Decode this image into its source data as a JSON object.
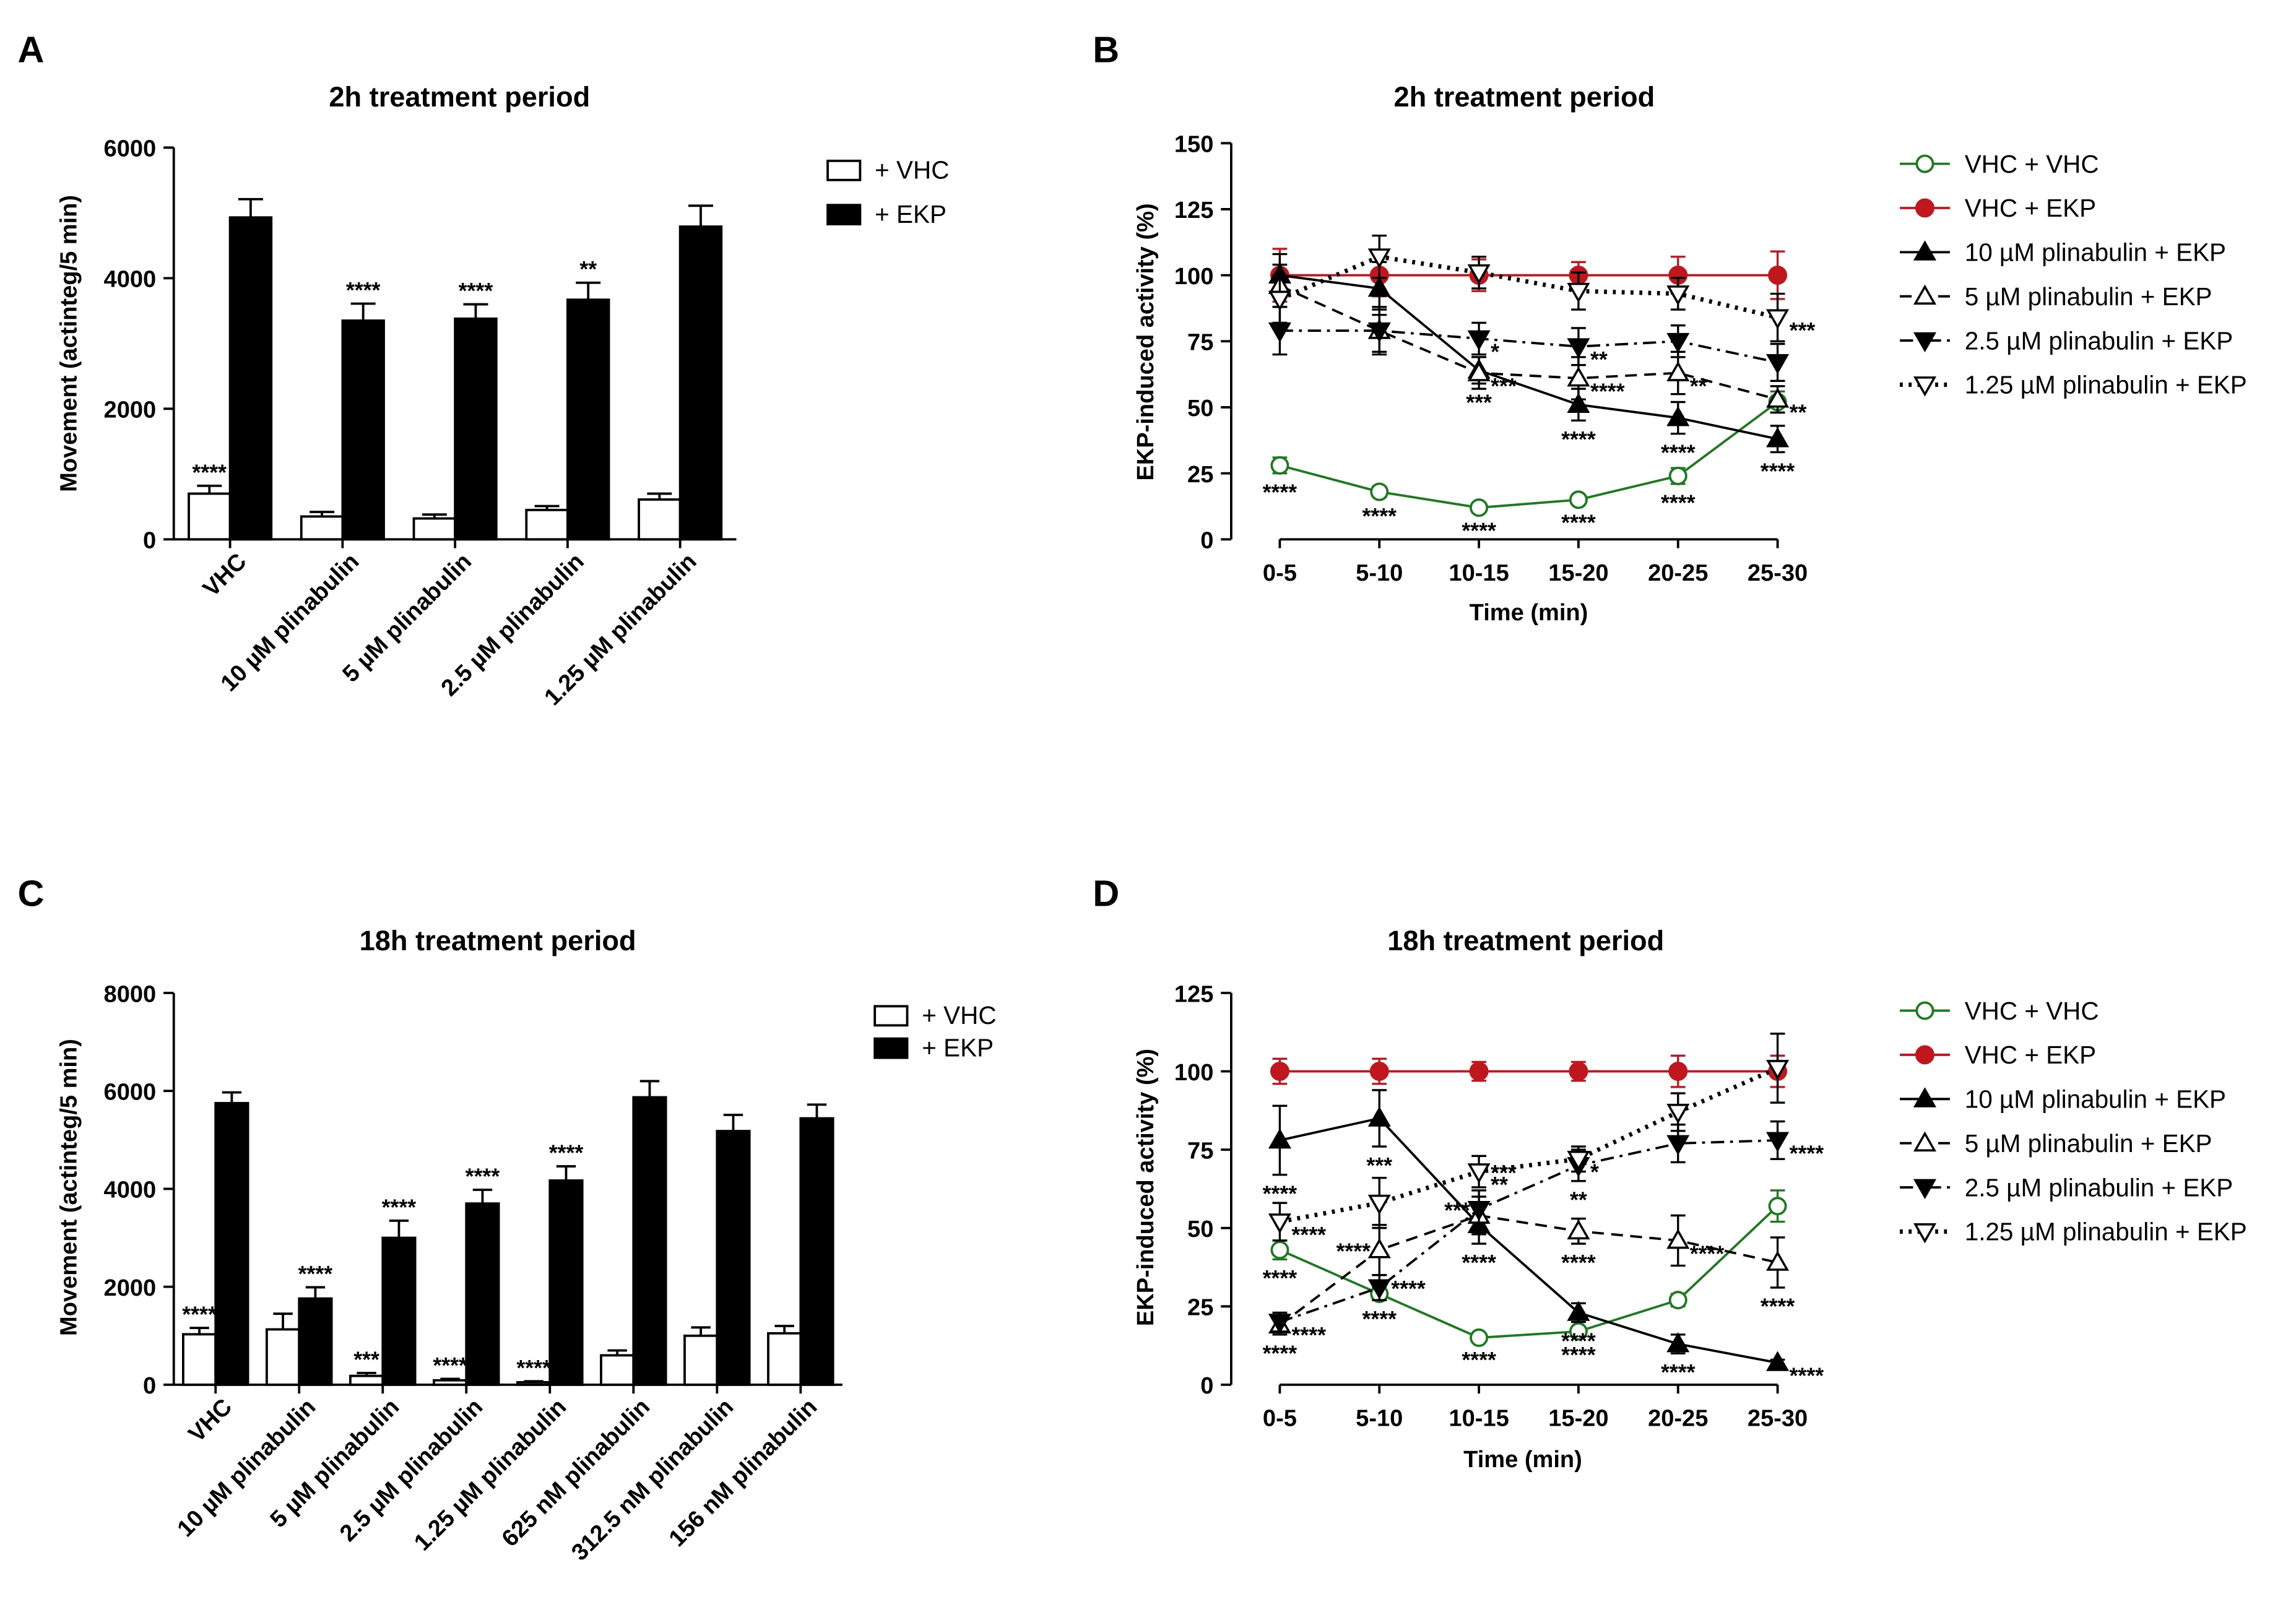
{
  "chart_data": [
    {
      "panel": "A",
      "type": "bar",
      "title": "2h treatment period",
      "ylabel": "Movement (actinteg/5 min)",
      "xlabel": "",
      "ylim": [
        0,
        6000
      ],
      "yticks": [
        0,
        2000,
        4000,
        6000
      ],
      "categories": [
        "VHC",
        "10 µM plinabulin",
        "5 µM plinabulin",
        "2.5 µM plinabulin",
        "1.25 µM plinabulin"
      ],
      "series": [
        {
          "name": "+ VHC",
          "fill": "#ffffff",
          "values": [
            700,
            350,
            320,
            450,
            610
          ],
          "errors": [
            120,
            70,
            60,
            60,
            90
          ],
          "annotations": [
            "****",
            "",
            "",
            "",
            ""
          ]
        },
        {
          "name": "+ EKP",
          "fill": "#000000",
          "values": [
            4930,
            3350,
            3380,
            3670,
            4790
          ],
          "errors": [
            280,
            260,
            220,
            260,
            320
          ],
          "annotations": [
            "",
            "****",
            "****",
            "**",
            ""
          ]
        }
      ],
      "legend": "top-right"
    },
    {
      "panel": "B",
      "type": "line",
      "title": "2h treatment period",
      "xlabel": "Time (min)",
      "ylabel": "EKP-induced activity (%)",
      "ylim": [
        0,
        150
      ],
      "yticks": [
        0,
        25,
        50,
        75,
        100,
        125,
        150
      ],
      "categories": [
        "0-5",
        "5-10",
        "10-15",
        "15-20",
        "20-25",
        "25-30"
      ],
      "series": [
        {
          "name": "VHC + VHC",
          "color": "#1e7a1e",
          "marker": "circle-open",
          "dash": "solid",
          "values": [
            28,
            18,
            12,
            15,
            24,
            52
          ],
          "errors": [
            3,
            2,
            1.5,
            1.5,
            3,
            4
          ],
          "annotations": [
            [
              0,
              0,
              0,
              -1,
              "****"
            ],
            [
              1,
              0,
              0,
              -1,
              "****"
            ],
            [
              2,
              0,
              0,
              -1,
              "****"
            ],
            [
              3,
              0,
              0,
              -1,
              "****"
            ],
            [
              4,
              0,
              0,
              -1,
              "****"
            ]
          ]
        },
        {
          "name": "VHC + EKP",
          "color": "#c0161e",
          "marker": "circle-filled",
          "dash": "solid",
          "values": [
            100,
            100,
            100,
            100,
            100,
            100
          ],
          "errors": [
            10,
            8,
            6,
            5,
            7,
            9
          ],
          "annotations": []
        },
        {
          "name": "10 µM plinabulin  + EKP",
          "color": "#000000",
          "marker": "triangle-up",
          "dash": "solid",
          "values": [
            100,
            95,
            64,
            51,
            46,
            38
          ],
          "errors": [
            8,
            10,
            5,
            6,
            6,
            5
          ],
          "annotations": [
            [
              2,
              0,
              0,
              -1,
              "***"
            ],
            [
              3,
              0,
              0,
              -1,
              "****"
            ],
            [
              4,
              0,
              0,
              -1,
              "****"
            ],
            [
              5,
              0,
              0,
              -1,
              "****"
            ]
          ]
        },
        {
          "name": "5 µM plinabulin + EKP",
          "color": "#000000",
          "marker": "triangle-up-open",
          "dash": "dashed",
          "values": [
            96,
            79,
            63,
            61,
            63,
            53
          ],
          "errors": [
            8,
            9,
            6,
            8,
            8,
            5
          ],
          "annotations": [
            [
              2,
              1,
              1,
              0,
              "***"
            ],
            [
              3,
              1,
              1,
              0,
              "****"
            ],
            [
              4,
              1,
              1,
              0,
              "**"
            ],
            [
              5,
              1,
              1,
              0,
              "**"
            ]
          ]
        },
        {
          "name": "2.5 µM plinabulin + EKP",
          "color": "#000000",
          "marker": "triangle-down",
          "dash": "dashdot",
          "values": [
            79,
            79,
            76,
            73,
            75,
            67
          ],
          "errors": [
            9,
            8,
            6,
            7,
            6,
            7
          ],
          "annotations": [
            [
              2,
              1,
              1,
              0,
              "*"
            ],
            [
              3,
              1,
              1,
              0,
              "**"
            ]
          ]
        },
        {
          "name": "1.25 µM plinabulin  + EKP",
          "color": "#000000",
          "marker": "triangle-down-open",
          "dash": "dotted",
          "values": [
            91,
            107,
            101,
            94,
            93,
            84
          ],
          "errors": [
            9,
            8,
            6,
            7,
            6,
            9
          ],
          "annotations": [
            [
              5,
              1,
              1,
              0,
              "***"
            ]
          ]
        }
      ],
      "legend": "right"
    },
    {
      "panel": "C",
      "type": "bar",
      "title": "18h treatment period",
      "ylabel": "Movement (actinteg/5 min)",
      "xlabel": "",
      "ylim": [
        0,
        8000
      ],
      "yticks": [
        0,
        2000,
        4000,
        6000,
        8000
      ],
      "categories": [
        "VHC",
        "10 µM plinabulin",
        "5 µM plinabulin",
        "2.5 µM plinabulin",
        "1.25 µM plinabulin",
        "625 nM plinabulin",
        "312.5 nM plinabulin",
        "156 nM plinabulin"
      ],
      "series": [
        {
          "name": "+ VHC",
          "fill": "#ffffff",
          "values": [
            1030,
            1130,
            180,
            90,
            50,
            600,
            1000,
            1050
          ],
          "errors": [
            130,
            320,
            60,
            30,
            20,
            100,
            170,
            150
          ],
          "annotations": [
            "****",
            "",
            "***",
            "****",
            "****",
            "",
            "",
            ""
          ]
        },
        {
          "name": "+ EKP",
          "fill": "#000000",
          "values": [
            5750,
            1760,
            3000,
            3700,
            4170,
            5870,
            5180,
            5440
          ],
          "errors": [
            220,
            230,
            350,
            280,
            290,
            330,
            330,
            280
          ],
          "annotations": [
            "",
            "****",
            "****",
            "****",
            "****",
            "",
            "",
            ""
          ]
        }
      ],
      "legend": "top-right"
    },
    {
      "panel": "D",
      "type": "line",
      "title": "18h treatment period",
      "xlabel": "Time (min)",
      "ylabel": "EKP-induced activity (%)",
      "ylim": [
        0,
        125
      ],
      "yticks": [
        0,
        25,
        50,
        75,
        100,
        125
      ],
      "categories": [
        "0-5",
        "5-10",
        "10-15",
        "15-20",
        "20-25",
        "25-30"
      ],
      "series": [
        {
          "name": "VHC + VHC",
          "color": "#1e7a1e",
          "marker": "circle-open",
          "dash": "solid",
          "values": [
            43,
            29,
            15,
            17,
            27,
            57
          ],
          "errors": [
            3,
            2,
            1,
            1.5,
            2,
            5
          ],
          "annotations": [
            [
              0,
              0,
              0,
              -1,
              "****"
            ],
            [
              1,
              0,
              0,
              -1,
              "****"
            ],
            [
              2,
              0,
              0,
              -1,
              "****"
            ],
            [
              3,
              0,
              0,
              -1,
              "****"
            ]
          ]
        },
        {
          "name": "VHC + EKP",
          "color": "#c0161e",
          "marker": "circle-filled",
          "dash": "solid",
          "values": [
            100,
            100,
            100,
            100,
            100,
            100
          ],
          "errors": [
            4,
            4,
            3,
            3,
            5,
            5
          ],
          "annotations": []
        },
        {
          "name": "10 µM plinabulin + EKP",
          "color": "#000000",
          "marker": "triangle-up",
          "dash": "solid",
          "values": [
            78,
            85,
            51,
            23,
            13,
            7
          ],
          "errors": [
            11,
            9,
            6,
            3,
            3,
            1
          ],
          "annotations": [
            [
              0,
              0,
              0,
              -1,
              "****"
            ],
            [
              1,
              0,
              0,
              -1,
              "***"
            ],
            [
              2,
              0,
              0,
              -1,
              "****"
            ],
            [
              3,
              0,
              0,
              -1,
              "****"
            ],
            [
              4,
              0,
              0,
              -1,
              "****"
            ],
            [
              5,
              1,
              1,
              0,
              "****"
            ]
          ]
        },
        {
          "name": "5 µM plinabulin + EKP",
          "color": "#000000",
          "marker": "triangle-up-open",
          "dash": "dashed",
          "values": [
            19,
            43,
            54,
            49,
            46,
            39
          ],
          "errors": [
            3,
            8,
            6,
            4,
            8,
            8
          ],
          "annotations": [
            [
              0,
              0,
              0,
              -1,
              "****"
            ],
            [
              1,
              -1,
              0,
              0,
              "****"
            ],
            [
              3,
              0,
              0,
              -1,
              "****"
            ],
            [
              4,
              1,
              1,
              0,
              "****"
            ],
            [
              5,
              0,
              0,
              -1,
              "****"
            ]
          ]
        },
        {
          "name": "2.5 µM plinabulin + EKP",
          "color": "#000000",
          "marker": "triangle-down",
          "dash": "dashdot",
          "values": [
            20,
            31,
            56,
            70,
            77,
            78
          ],
          "errors": [
            3,
            4,
            6,
            5,
            6,
            6
          ],
          "annotations": [
            [
              0,
              1,
              1,
              0,
              "****"
            ],
            [
              1,
              1,
              0,
              0,
              "****"
            ],
            [
              2,
              -1,
              0,
              0,
              "***"
            ],
            [
              3,
              0,
              0,
              -1,
              "**"
            ],
            [
              5,
              1,
              1,
              0,
              "****"
            ]
          ]
        },
        {
          "name": "1.25 µM plinabulin + EKP",
          "color": "#000000",
          "marker": "triangle-down-open",
          "dash": "dotted",
          "values": [
            52,
            58,
            68,
            72,
            87,
            101
          ],
          "errors": [
            6,
            8,
            5,
            4,
            6,
            11
          ],
          "annotations": [
            [
              0,
              1,
              1,
              0,
              "****"
            ],
            [
              2,
              1,
              1,
              0,
              "**"
            ],
            [
              2,
              1,
              0,
              0,
              "***"
            ],
            [
              3,
              1,
              1,
              0,
              "*"
            ]
          ]
        }
      ],
      "legend": "right"
    }
  ]
}
